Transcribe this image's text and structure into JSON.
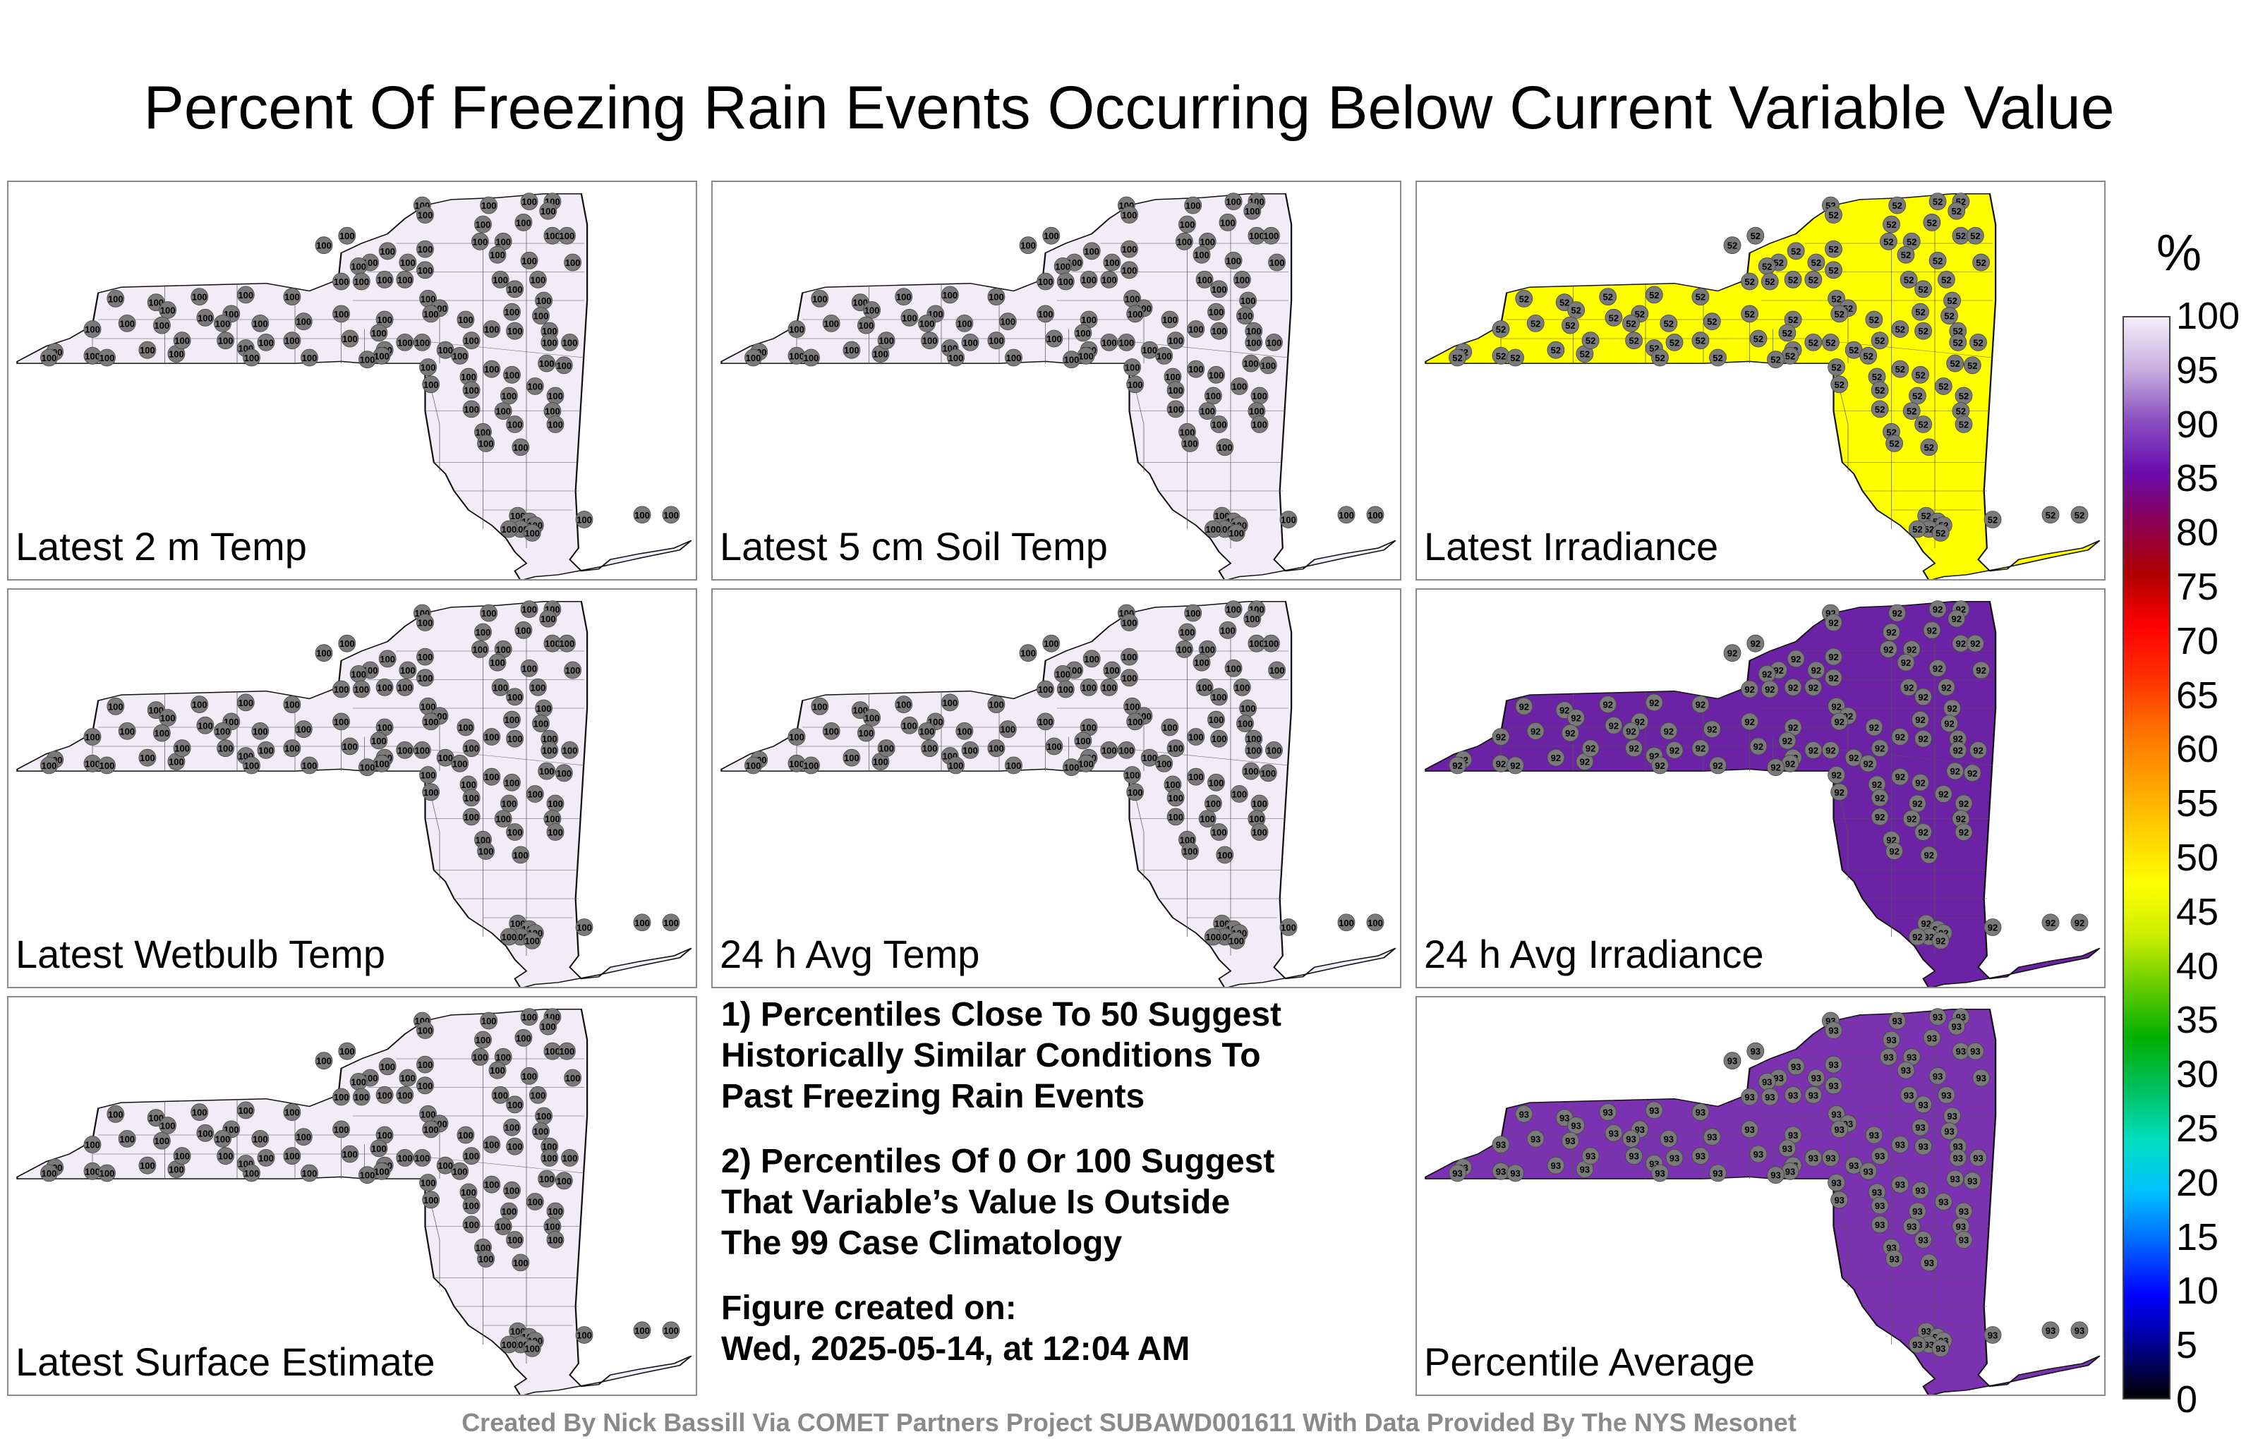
{
  "title": "Percent Of Freezing Rain Events Occurring Below Current Variable Value",
  "panels": [
    {
      "label": "Latest 2 m Temp",
      "value": 100,
      "fill": "#f1ecf6"
    },
    {
      "label": "Latest 5 cm Soil Temp",
      "value": 100,
      "fill": "#f1ecf6"
    },
    {
      "label": "Latest Irradiance",
      "value": 52,
      "fill": "#ffff00"
    },
    {
      "label": "Latest Wetbulb Temp",
      "value": 100,
      "fill": "#f1ecf6"
    },
    {
      "label": "24 h Avg Temp",
      "value": 100,
      "fill": "#f1ecf6"
    },
    {
      "label": "24 h Avg Irradiance",
      "value": 92,
      "fill": "#6b22a4"
    },
    {
      "label": "Latest Surface Estimate",
      "value": 100,
      "fill": "#f1ecf6"
    },
    {
      "label": "Percentile Average",
      "value": 93,
      "fill": "#7a32b0"
    }
  ],
  "notes": {
    "note1": [
      "1) Percentiles Close To 50 Suggest",
      "Historically Similar Conditions To",
      "Past Freezing Rain Events"
    ],
    "note2": [
      "2) Percentiles Of 0 Or 100 Suggest",
      "That Variable’s Value Is Outside",
      "The 99 Case Climatology"
    ],
    "created_label": "Figure created on:",
    "created_value": "Wed, 2025-05-14, at 12:04 AM"
  },
  "colorbar": {
    "unit": "%",
    "ticks": [
      "100",
      "95",
      "90",
      "85",
      "80",
      "75",
      "70",
      "65",
      "60",
      "55",
      "50",
      "45",
      "40",
      "35",
      "30",
      "25",
      "20",
      "15",
      "10",
      "5",
      "0"
    ],
    "stops": [
      "#000000",
      "#00008b",
      "#0000ff",
      "#0066ff",
      "#00bfff",
      "#00e0c0",
      "#00c060",
      "#00b000",
      "#66cc00",
      "#ccee00",
      "#ffff00",
      "#ffd000",
      "#ffa000",
      "#ff7000",
      "#ff3000",
      "#ff0000",
      "#b00000",
      "#8b0050",
      "#6a0dad",
      "#8a4fc0",
      "#c8b0e0",
      "#f3eef8"
    ]
  },
  "credit": "Created By Nick Bassill Via COMET Partners Project SUBAWD001611 With Data Provided By The NYS Mesonet",
  "map_elements": {
    "station_marker": "circle",
    "state_outline": "New York State",
    "county_lines": "visible"
  }
}
